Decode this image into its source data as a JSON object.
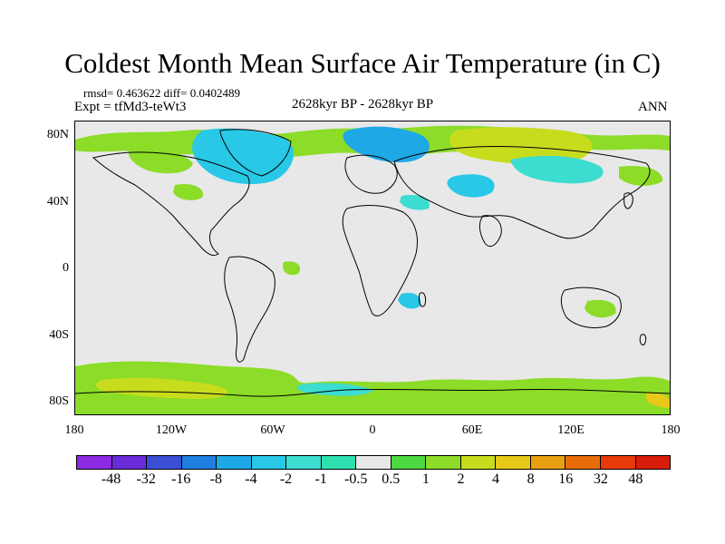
{
  "title": "Coldest Month Mean Surface Air Temperature (in C)",
  "stats": "rmsd= 0.463622 diff= 0.0402489",
  "experiment": "Expt = tfMd3-teWt3",
  "period": "2628kyr BP - 2628kyr BP",
  "season": "ANN",
  "lat_labels": [
    "80N",
    "40N",
    "0",
    "40S",
    "80S"
  ],
  "lon_labels": [
    "180",
    "120W",
    "60W",
    "0",
    "60E",
    "120E",
    "180"
  ],
  "colorbar": {
    "labels": [
      "-48",
      "-32",
      "-16",
      "-8",
      "-4",
      "-2",
      "-1",
      "-0.5",
      "0.5",
      "1",
      "2",
      "4",
      "8",
      "16",
      "32",
      "48"
    ],
    "colors": [
      "#8a2be2",
      "#6a2cd8",
      "#3a4fd6",
      "#1e7fe0",
      "#1ea8e6",
      "#28c8e6",
      "#3ddcd0",
      "#2ee0b0",
      "#e8e8e8",
      "#4cd840",
      "#8cdc28",
      "#c8dc1e",
      "#e8c818",
      "#e8a010",
      "#e86c08",
      "#e83a0a",
      "#d81e0a"
    ]
  },
  "map_colors": {
    "background": "#e8e8e8",
    "green": "#8cdc28",
    "light_green": "#c8dc1e",
    "cyan": "#28c8e6",
    "light_cyan": "#3ddcd0",
    "blue": "#1ea8e6"
  }
}
